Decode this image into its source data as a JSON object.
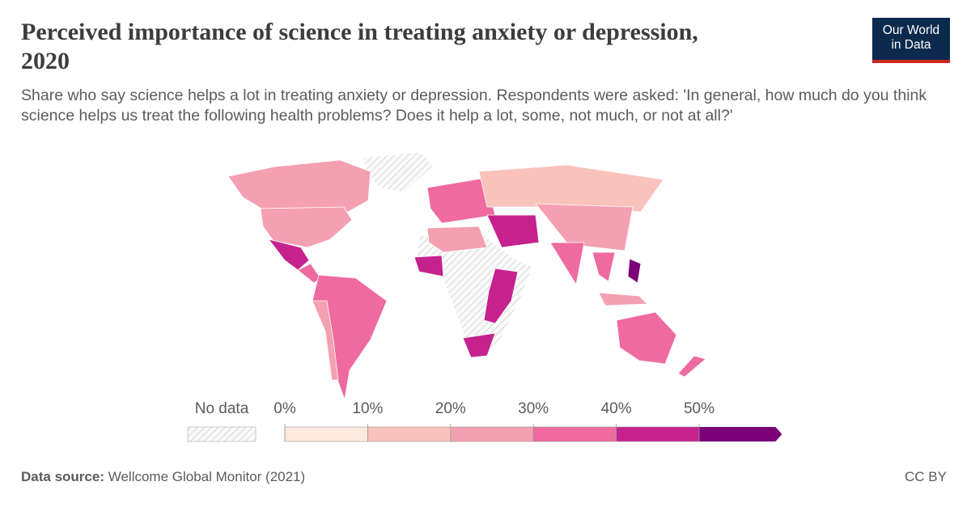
{
  "header": {
    "title": "Perceived importance of science in treating anxiety or depression, 2020",
    "subtitle": "Share who say science helps a lot in treating anxiety or depression. Respondents were asked: 'In general, how much do you think science helps us treat the following health problems? Does it help a lot, some, not much, or not at all?'",
    "logo": [
      "Our World",
      "in Data"
    ]
  },
  "legend": {
    "no_data_label": "No data",
    "ticks": [
      {
        "value": 0,
        "label": "0%"
      },
      {
        "value": 10,
        "label": "10%"
      },
      {
        "value": 20,
        "label": "20%"
      },
      {
        "value": 30,
        "label": "30%"
      },
      {
        "value": 40,
        "label": "40%"
      },
      {
        "value": 50,
        "label": "50%"
      }
    ],
    "colors": [
      "#fde9df",
      "#f9c2bb",
      "#f4a0b1",
      "#ee6a9f",
      "#c5228e",
      "#7b0277"
    ]
  },
  "footer": {
    "source_label": "Data source:",
    "source": "Wellcome Global Monitor (2021)",
    "license": "CC BY"
  }
}
